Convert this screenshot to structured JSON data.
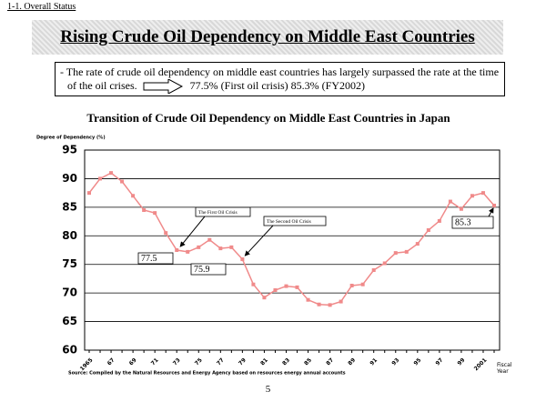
{
  "section": "1-1. Overall Status",
  "banner": "Rising Crude Oil Dependency on Middle East Countries",
  "summary": {
    "text": "- The rate of crude oil dependency on middle east countries has largely surpassed the rate at the time of the oil crises.",
    "highlight": "77.5% (First oil crisis)   85.3% (FY2002)"
  },
  "page_number": "5",
  "chart_data": {
    "type": "line",
    "title": "Transition of Crude Oil Dependency on Middle East Countries in Japan",
    "y_label": "Degree of Dependency (%)",
    "x_label": "Fiscal Year",
    "source": "Source: Compiled by the Natural Resources and Energy Agency based on resources energy annual accounts",
    "annotations": [
      "The First Oil Crisis",
      "The Second Oil Crisis"
    ],
    "categories": [
      "1965",
      null,
      "67",
      null,
      "69",
      null,
      "71",
      null,
      "73",
      null,
      "75",
      null,
      "77",
      null,
      "79",
      null,
      "81",
      null,
      "83",
      null,
      "85",
      null,
      "87",
      null,
      "89",
      null,
      "91",
      null,
      "93",
      null,
      "95",
      null,
      "97",
      null,
      "99",
      null,
      "2001",
      null
    ],
    "values": [
      87.5,
      90.0,
      91.0,
      89.5,
      87.0,
      84.5,
      84.0,
      80.5,
      77.5,
      77.2,
      78.0,
      79.3,
      77.8,
      78.0,
      75.9,
      71.5,
      69.2,
      70.5,
      71.2,
      71.0,
      68.8,
      68.0,
      67.9,
      68.5,
      71.3,
      71.5,
      74.0,
      75.2,
      77.0,
      77.2,
      78.6,
      81.0,
      82.6,
      86.0,
      84.7,
      87.0,
      87.5,
      85.3
    ],
    "color": "#f08a8a",
    "ylim": [
      60,
      95
    ],
    "yticks": [
      60,
      65,
      70,
      75,
      80,
      85,
      90,
      95
    ],
    "grid": true
  }
}
